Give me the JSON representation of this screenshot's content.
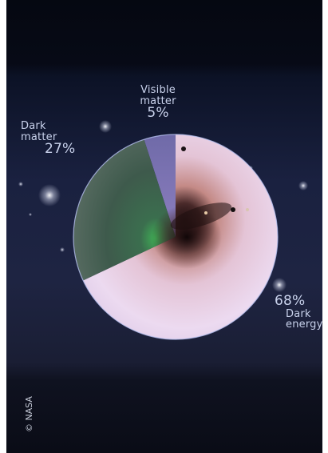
{
  "chart_data": {
    "type": "pie",
    "title": "",
    "slices": [
      {
        "label": "Visible matter",
        "value": 5,
        "value_label": "5%",
        "color": "#9a8fc8"
      },
      {
        "label": "Dark matter",
        "value": 27,
        "value_label": "27%",
        "color": "#3e5a4c"
      },
      {
        "label": "Dark energy",
        "value": 68,
        "value_label": "68%",
        "color": "#e8d6ec"
      }
    ],
    "labels": {
      "visible": {
        "line1": "Visible",
        "line2": "matter",
        "pct": "5%"
      },
      "dark_matter": {
        "line1": "Dark",
        "line2": "matter",
        "pct": "27%"
      },
      "dark_energy": {
        "pct": "68%",
        "line1": "Dark",
        "line2": "energy"
      }
    },
    "legend": "none",
    "grid": false
  },
  "credit": "© NASA"
}
